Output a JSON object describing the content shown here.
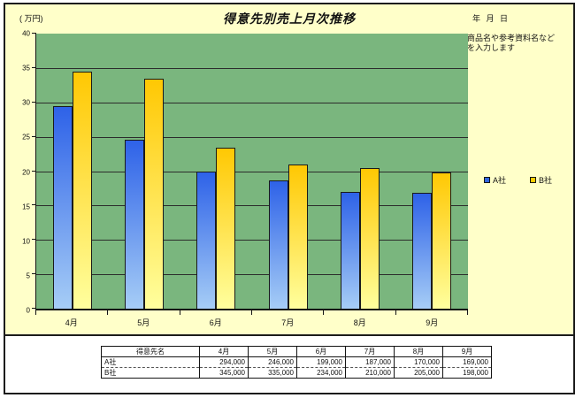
{
  "header": {
    "unit_label": "( 万円)",
    "title": "得意先別売上月次推移",
    "date_label": "年 月 日",
    "note": "商品名や参考資料名など\nを入力します"
  },
  "chart_data": {
    "type": "bar",
    "title": "得意先別売上月次推移",
    "unit": "万円",
    "categories": [
      "4月",
      "5月",
      "6月",
      "7月",
      "8月",
      "9月"
    ],
    "series": [
      {
        "name": "A社",
        "values": [
          29.4,
          24.6,
          19.9,
          18.7,
          17.0,
          16.9
        ],
        "color_top": "#2E62E8",
        "color_bottom": "#A6CDF6",
        "legend_color": "#3366DD"
      },
      {
        "name": "B社",
        "values": [
          34.5,
          33.5,
          23.4,
          21.0,
          20.5,
          19.8
        ],
        "color_top": "#FFC803",
        "color_bottom": "#FFFF9E",
        "legend_color": "#FFCC00"
      }
    ],
    "ylim": [
      0,
      40
    ],
    "yticks": [
      0,
      5,
      10,
      15,
      20,
      25,
      30,
      35,
      40
    ],
    "grid": true,
    "legend_position": "right",
    "plot_bg": "#7AB67E",
    "sheet_bg": "#FFFFC9"
  },
  "table": {
    "header_row": [
      "得意先名",
      "4月",
      "5月",
      "6月",
      "7月",
      "8月",
      "9月"
    ],
    "rows": [
      {
        "label": "A社",
        "values": [
          "294,000",
          "246,000",
          "199,000",
          "187,000",
          "170,000",
          "169,000"
        ]
      },
      {
        "label": "B社",
        "values": [
          "345,000",
          "335,000",
          "234,000",
          "210,000",
          "205,000",
          "198,000"
        ]
      }
    ]
  }
}
